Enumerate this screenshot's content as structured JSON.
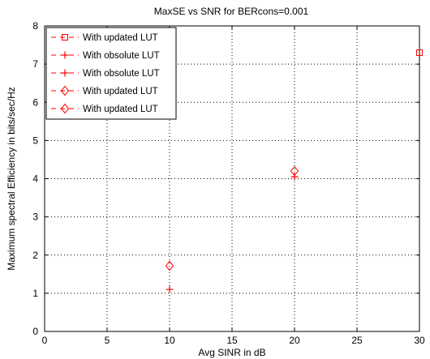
{
  "chart_data": {
    "type": "scatter",
    "title": "MaxSE vs SNR for BERcons=0.001",
    "xlabel": "Avg SINR in dB",
    "ylabel": "Maximum spectral Efficiency in bits/sec/Hz",
    "xlim": [
      0,
      30
    ],
    "ylim": [
      0,
      8
    ],
    "xticks": [
      0,
      5,
      10,
      15,
      20,
      25,
      30
    ],
    "yticks": [
      0,
      1,
      2,
      3,
      4,
      5,
      6,
      7,
      8
    ],
    "grid": true,
    "legend_position": "top-left",
    "color": "#ff0000",
    "series": [
      {
        "name": "With updated LUT",
        "marker": "square",
        "points": [
          {
            "x": 30,
            "y": 7.3
          }
        ]
      },
      {
        "name": "With obsolute LUT",
        "marker": "plus",
        "points": [
          {
            "x": 20,
            "y": 4.05
          }
        ]
      },
      {
        "name": "With obsolute LUT",
        "marker": "plus",
        "points": [
          {
            "x": 10,
            "y": 1.1
          }
        ]
      },
      {
        "name": "With updated LUT",
        "marker": "diamond",
        "points": [
          {
            "x": 20,
            "y": 4.2
          }
        ]
      },
      {
        "name": "With updated LUT",
        "marker": "diamond",
        "points": [
          {
            "x": 10,
            "y": 1.72
          }
        ]
      }
    ]
  }
}
